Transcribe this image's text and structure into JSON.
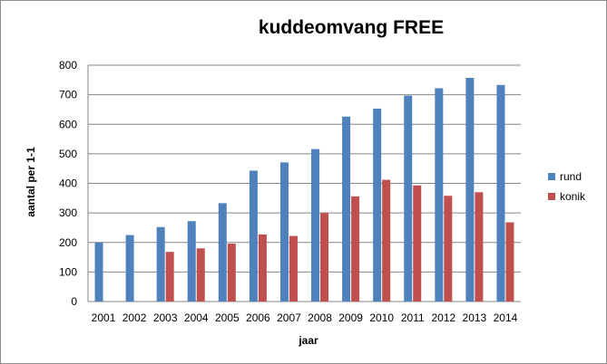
{
  "chart_data": {
    "type": "bar",
    "title": "kuddeomvang FREE",
    "xlabel": "jaar",
    "ylabel": "aantal per 1-1",
    "categories": [
      "2001",
      "2002",
      "2003",
      "2004",
      "2005",
      "2006",
      "2007",
      "2008",
      "2009",
      "2010",
      "2011",
      "2012",
      "2013",
      "2014"
    ],
    "series": [
      {
        "name": "rund",
        "color": "#4f81bd",
        "values": [
          200,
          225,
          252,
          272,
          333,
          443,
          471,
          516,
          626,
          653,
          697,
          722,
          757,
          733
        ]
      },
      {
        "name": "konik",
        "color": "#c0504d",
        "values": [
          null,
          null,
          168,
          180,
          196,
          227,
          222,
          300,
          356,
          412,
          393,
          358,
          370,
          268
        ]
      }
    ],
    "ylim": [
      0,
      800
    ],
    "yticks": [
      "0",
      "100",
      "200",
      "300",
      "400",
      "500",
      "600",
      "700",
      "800"
    ],
    "grid": true,
    "legend_position": "right"
  }
}
